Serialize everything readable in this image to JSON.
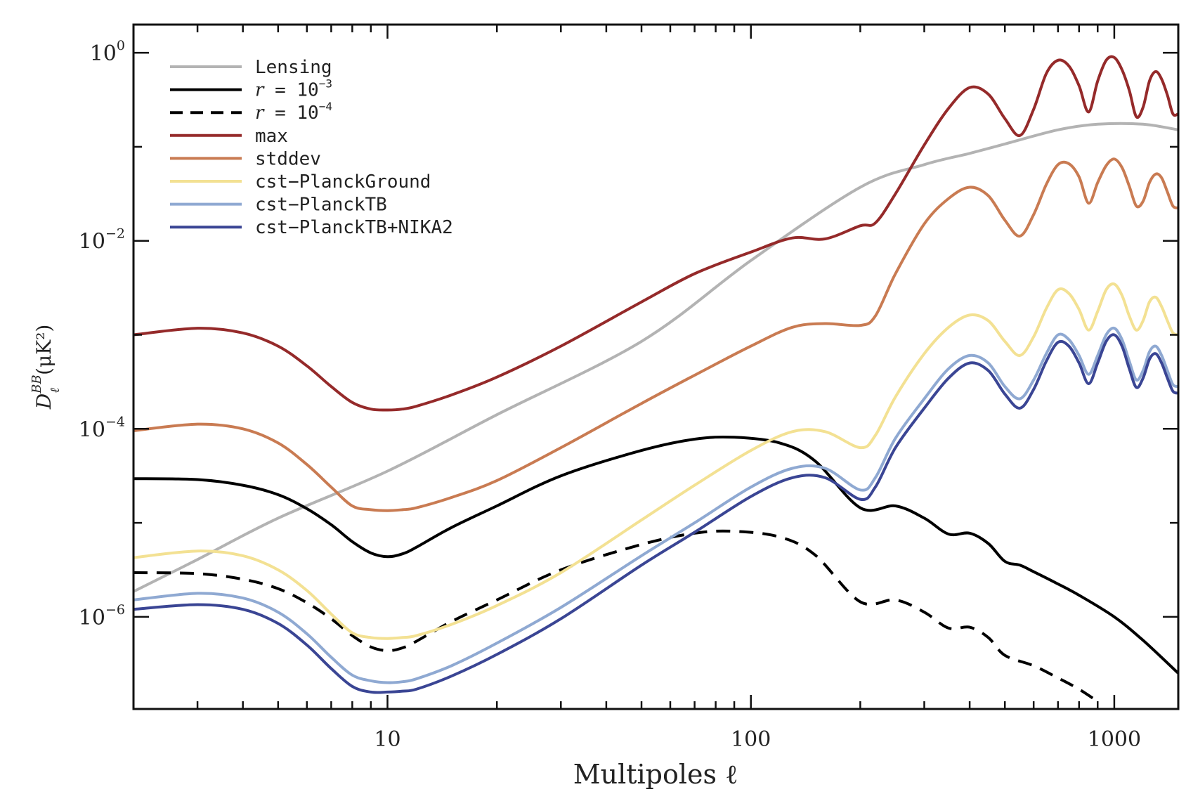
{
  "chart_data": {
    "type": "line",
    "title": "",
    "xlabel": "Multipoles ℓ",
    "ylabel": "D",
    "ylabel_super": "BB",
    "ylabel_sub": "ℓ",
    "ylabel_units": "(μK²)",
    "xscale": "log",
    "yscale": "log",
    "xlim": [
      2,
      1500
    ],
    "ylim_log10": [
      -6.98,
      0.3
    ],
    "xticks": [
      {
        "value": 10,
        "label": "10"
      },
      {
        "value": 100,
        "label": "100"
      },
      {
        "value": 1000,
        "label": "1000"
      }
    ],
    "yticks": [
      {
        "exp": 0,
        "base": "10",
        "power": "0"
      },
      {
        "exp": -2,
        "base": "10",
        "power": "−2"
      },
      {
        "exp": -4,
        "base": "10",
        "power": "−4"
      },
      {
        "exp": -6,
        "base": "10",
        "power": "−6"
      }
    ],
    "legend_position": "top-left",
    "series": [
      {
        "name": "Lensing",
        "label": "Lensing",
        "label_sup": "",
        "color": "#b3b3b3",
        "dash": "solid",
        "x": [
          2,
          3,
          5,
          10,
          20,
          50,
          100,
          200,
          300,
          400,
          500,
          700,
          900,
          1200,
          1500
        ],
        "log10_y": [
          -5.73,
          -5.39,
          -4.95,
          -4.45,
          -3.85,
          -3.07,
          -2.21,
          -1.43,
          -1.19,
          -1.07,
          -0.97,
          -0.82,
          -0.76,
          -0.76,
          -0.82
        ]
      },
      {
        "name": "r = 10^-3",
        "label": "r = 10",
        "label_sup": "−3",
        "color": "#000000",
        "dash": "solid",
        "x": [
          2,
          3,
          4,
          5,
          6,
          7,
          8,
          9,
          10,
          11,
          12,
          15,
          20,
          30,
          50,
          70,
          90,
          120,
          150,
          200,
          250,
          300,
          350,
          400,
          450,
          500,
          550,
          600,
          700,
          800,
          1000,
          1200,
          1500
        ],
        "log10_y": [
          -4.53,
          -4.54,
          -4.6,
          -4.7,
          -4.85,
          -5.02,
          -5.2,
          -5.32,
          -5.36,
          -5.33,
          -5.26,
          -5.05,
          -4.82,
          -4.5,
          -4.23,
          -4.11,
          -4.09,
          -4.15,
          -4.34,
          -4.84,
          -4.82,
          -4.95,
          -5.12,
          -5.11,
          -5.22,
          -5.41,
          -5.45,
          -5.52,
          -5.65,
          -5.77,
          -6.0,
          -6.25,
          -6.6
        ]
      },
      {
        "name": "r = 10^-4",
        "label": "r = 10",
        "label_sup": "−4",
        "color": "#000000",
        "dash": "dashed",
        "x": [
          2,
          3,
          4,
          5,
          6,
          7,
          8,
          9,
          10,
          11,
          12,
          15,
          20,
          30,
          50,
          70,
          90,
          120,
          150,
          200,
          250,
          300,
          350,
          400,
          450,
          500,
          600,
          700,
          800,
          900
        ],
        "log10_y": [
          -5.53,
          -5.54,
          -5.6,
          -5.7,
          -5.85,
          -6.02,
          -6.2,
          -6.32,
          -6.36,
          -6.33,
          -6.26,
          -6.05,
          -5.82,
          -5.5,
          -5.23,
          -5.11,
          -5.09,
          -5.15,
          -5.34,
          -5.84,
          -5.82,
          -5.95,
          -6.12,
          -6.11,
          -6.22,
          -6.41,
          -6.52,
          -6.65,
          -6.77,
          -6.9
        ]
      },
      {
        "name": "max",
        "label": "max",
        "label_sup": "",
        "color": "#952a2a",
        "dash": "solid",
        "x": [
          2,
          3,
          4,
          5,
          6,
          7,
          8,
          9,
          10,
          11,
          12,
          15,
          20,
          30,
          50,
          70,
          100,
          130,
          160,
          200,
          220,
          250,
          300,
          350,
          400,
          450,
          500,
          550,
          600,
          650,
          700,
          750,
          800,
          850,
          900,
          950,
          1000,
          1050,
          1100,
          1150,
          1200,
          1250,
          1300,
          1350,
          1400,
          1450,
          1500
        ],
        "log10_y": [
          -3.0,
          -2.93,
          -2.98,
          -3.12,
          -3.33,
          -3.55,
          -3.72,
          -3.79,
          -3.8,
          -3.79,
          -3.76,
          -3.64,
          -3.45,
          -3.12,
          -2.65,
          -2.35,
          -2.12,
          -1.97,
          -1.98,
          -1.84,
          -1.81,
          -1.5,
          -0.98,
          -0.59,
          -0.37,
          -0.44,
          -0.7,
          -0.88,
          -0.6,
          -0.22,
          -0.08,
          -0.14,
          -0.35,
          -0.63,
          -0.3,
          -0.08,
          -0.05,
          -0.18,
          -0.4,
          -0.68,
          -0.58,
          -0.3,
          -0.2,
          -0.28,
          -0.45,
          -0.65,
          -0.65
        ]
      },
      {
        "name": "stddev",
        "label": "stddev",
        "label_sup": "",
        "color": "#c97b52",
        "dash": "solid",
        "x": [
          2,
          3,
          4,
          5,
          6,
          7,
          8,
          9,
          10,
          11,
          12,
          15,
          20,
          30,
          50,
          70,
          100,
          130,
          160,
          200,
          220,
          250,
          300,
          350,
          400,
          450,
          500,
          550,
          600,
          650,
          700,
          750,
          800,
          850,
          900,
          950,
          1000,
          1050,
          1100,
          1150,
          1200,
          1250,
          1300,
          1350,
          1400,
          1450,
          1500
        ],
        "log10_y": [
          -4.02,
          -3.95,
          -4.0,
          -4.15,
          -4.38,
          -4.62,
          -4.82,
          -4.86,
          -4.87,
          -4.86,
          -4.84,
          -4.73,
          -4.55,
          -4.2,
          -3.73,
          -3.43,
          -3.12,
          -2.92,
          -2.88,
          -2.9,
          -2.8,
          -2.35,
          -1.82,
          -1.55,
          -1.43,
          -1.52,
          -1.78,
          -1.95,
          -1.72,
          -1.4,
          -1.19,
          -1.18,
          -1.32,
          -1.6,
          -1.38,
          -1.2,
          -1.13,
          -1.22,
          -1.42,
          -1.63,
          -1.58,
          -1.38,
          -1.29,
          -1.33,
          -1.48,
          -1.63,
          -1.65
        ]
      },
      {
        "name": "cst-PlanckGround",
        "label": "cst−PlanckGround",
        "label_sup": "",
        "color": "#f3e193",
        "dash": "solid",
        "x": [
          2,
          3,
          4,
          5,
          6,
          7,
          8,
          9,
          10,
          11,
          12,
          15,
          20,
          30,
          50,
          70,
          100,
          130,
          160,
          200,
          220,
          250,
          300,
          350,
          400,
          450,
          500,
          550,
          600,
          650,
          700,
          750,
          800,
          850,
          900,
          950,
          1000,
          1050,
          1100,
          1150,
          1200,
          1250,
          1300,
          1350,
          1400,
          1450,
          1500
        ],
        "log10_y": [
          -5.37,
          -5.3,
          -5.35,
          -5.5,
          -5.72,
          -5.97,
          -6.17,
          -6.22,
          -6.23,
          -6.22,
          -6.2,
          -6.08,
          -5.88,
          -5.53,
          -4.97,
          -4.6,
          -4.23,
          -4.03,
          -4.03,
          -4.2,
          -4.07,
          -3.66,
          -3.2,
          -2.92,
          -2.79,
          -2.85,
          -3.07,
          -3.22,
          -3.02,
          -2.72,
          -2.52,
          -2.56,
          -2.73,
          -2.95,
          -2.75,
          -2.52,
          -2.46,
          -2.58,
          -2.8,
          -2.95,
          -2.85,
          -2.65,
          -2.6,
          -2.7,
          -2.85,
          -2.98,
          -3.0
        ]
      },
      {
        "name": "cst-PlanckTB",
        "label": "cst−PlanckTB",
        "label_sup": "",
        "color": "#8fa9d2",
        "dash": "solid",
        "x": [
          2,
          3,
          4,
          5,
          6,
          7,
          8,
          9,
          10,
          11,
          12,
          15,
          20,
          30,
          50,
          70,
          100,
          130,
          160,
          200,
          220,
          250,
          300,
          350,
          400,
          450,
          500,
          550,
          600,
          650,
          700,
          750,
          800,
          850,
          900,
          950,
          1000,
          1050,
          1100,
          1150,
          1200,
          1250,
          1300,
          1350,
          1400,
          1450,
          1500
        ],
        "log10_y": [
          -5.82,
          -5.75,
          -5.8,
          -5.95,
          -6.18,
          -6.43,
          -6.62,
          -6.68,
          -6.7,
          -6.69,
          -6.66,
          -6.52,
          -6.28,
          -5.9,
          -5.35,
          -5.0,
          -4.62,
          -4.42,
          -4.42,
          -4.65,
          -4.52,
          -4.1,
          -3.68,
          -3.36,
          -3.22,
          -3.3,
          -3.55,
          -3.68,
          -3.48,
          -3.2,
          -3.0,
          -3.05,
          -3.22,
          -3.42,
          -3.22,
          -3.0,
          -2.93,
          -3.05,
          -3.28,
          -3.48,
          -3.38,
          -3.18,
          -3.12,
          -3.22,
          -3.38,
          -3.53,
          -3.55
        ]
      },
      {
        "name": "cst-PlanckTB+NIKA2",
        "label": "cst−PlanckTB+NIKA2",
        "label_sup": "",
        "color": "#3a4594",
        "dash": "solid",
        "x": [
          2,
          3,
          4,
          5,
          6,
          7,
          8,
          9,
          10,
          11,
          12,
          15,
          20,
          30,
          50,
          70,
          100,
          130,
          160,
          200,
          220,
          250,
          300,
          350,
          400,
          450,
          500,
          550,
          600,
          650,
          700,
          750,
          800,
          850,
          900,
          950,
          1000,
          1050,
          1100,
          1150,
          1200,
          1250,
          1300,
          1350,
          1400,
          1450,
          1500
        ],
        "log10_y": [
          -5.92,
          -5.87,
          -5.92,
          -6.07,
          -6.3,
          -6.55,
          -6.74,
          -6.8,
          -6.8,
          -6.79,
          -6.77,
          -6.63,
          -6.4,
          -6.02,
          -5.45,
          -5.1,
          -4.72,
          -4.52,
          -4.52,
          -4.75,
          -4.62,
          -4.2,
          -3.78,
          -3.46,
          -3.3,
          -3.38,
          -3.63,
          -3.78,
          -3.58,
          -3.28,
          -3.08,
          -3.12,
          -3.3,
          -3.52,
          -3.3,
          -3.07,
          -3.0,
          -3.12,
          -3.36,
          -3.56,
          -3.46,
          -3.26,
          -3.2,
          -3.3,
          -3.46,
          -3.6,
          -3.62
        ]
      }
    ]
  }
}
